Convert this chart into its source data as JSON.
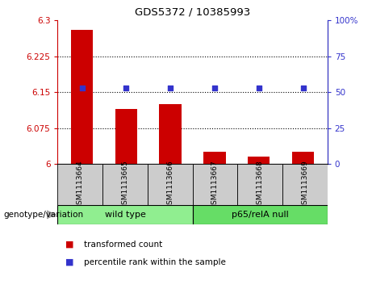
{
  "title": "GDS5372 / 10385993",
  "categories": [
    "GSM1113664",
    "GSM1113665",
    "GSM1113666",
    "GSM1113667",
    "GSM1113668",
    "GSM1113669"
  ],
  "bar_values": [
    6.28,
    6.115,
    6.125,
    6.025,
    6.015,
    6.025
  ],
  "percentile_values": [
    53,
    53,
    53,
    53,
    53,
    53
  ],
  "ylim_left": [
    6.0,
    6.3
  ],
  "ylim_right": [
    0,
    100
  ],
  "yticks_left": [
    6.0,
    6.075,
    6.15,
    6.225,
    6.3
  ],
  "ytick_labels_left": [
    "6",
    "6.075",
    "6.15",
    "6.225",
    "6.3"
  ],
  "yticks_right": [
    0,
    25,
    50,
    75,
    100
  ],
  "ytick_labels_right": [
    "0",
    "25",
    "50",
    "75",
    "100%"
  ],
  "bar_color": "#cc0000",
  "dot_color": "#3333cc",
  "group0_label": "wild type",
  "group0_color": "#90ee90",
  "group1_label": "p65/relA null",
  "group1_color": "#66dd66",
  "group_label_prefix": "genotype/variation",
  "legend_items": [
    {
      "label": "transformed count",
      "color": "#cc0000"
    },
    {
      "label": "percentile rank within the sample",
      "color": "#3333cc"
    }
  ],
  "grid_color": "black",
  "label_box_color": "#cccccc",
  "background_color": "#ffffff",
  "bar_width": 0.5,
  "xlim": [
    -0.55,
    5.55
  ]
}
